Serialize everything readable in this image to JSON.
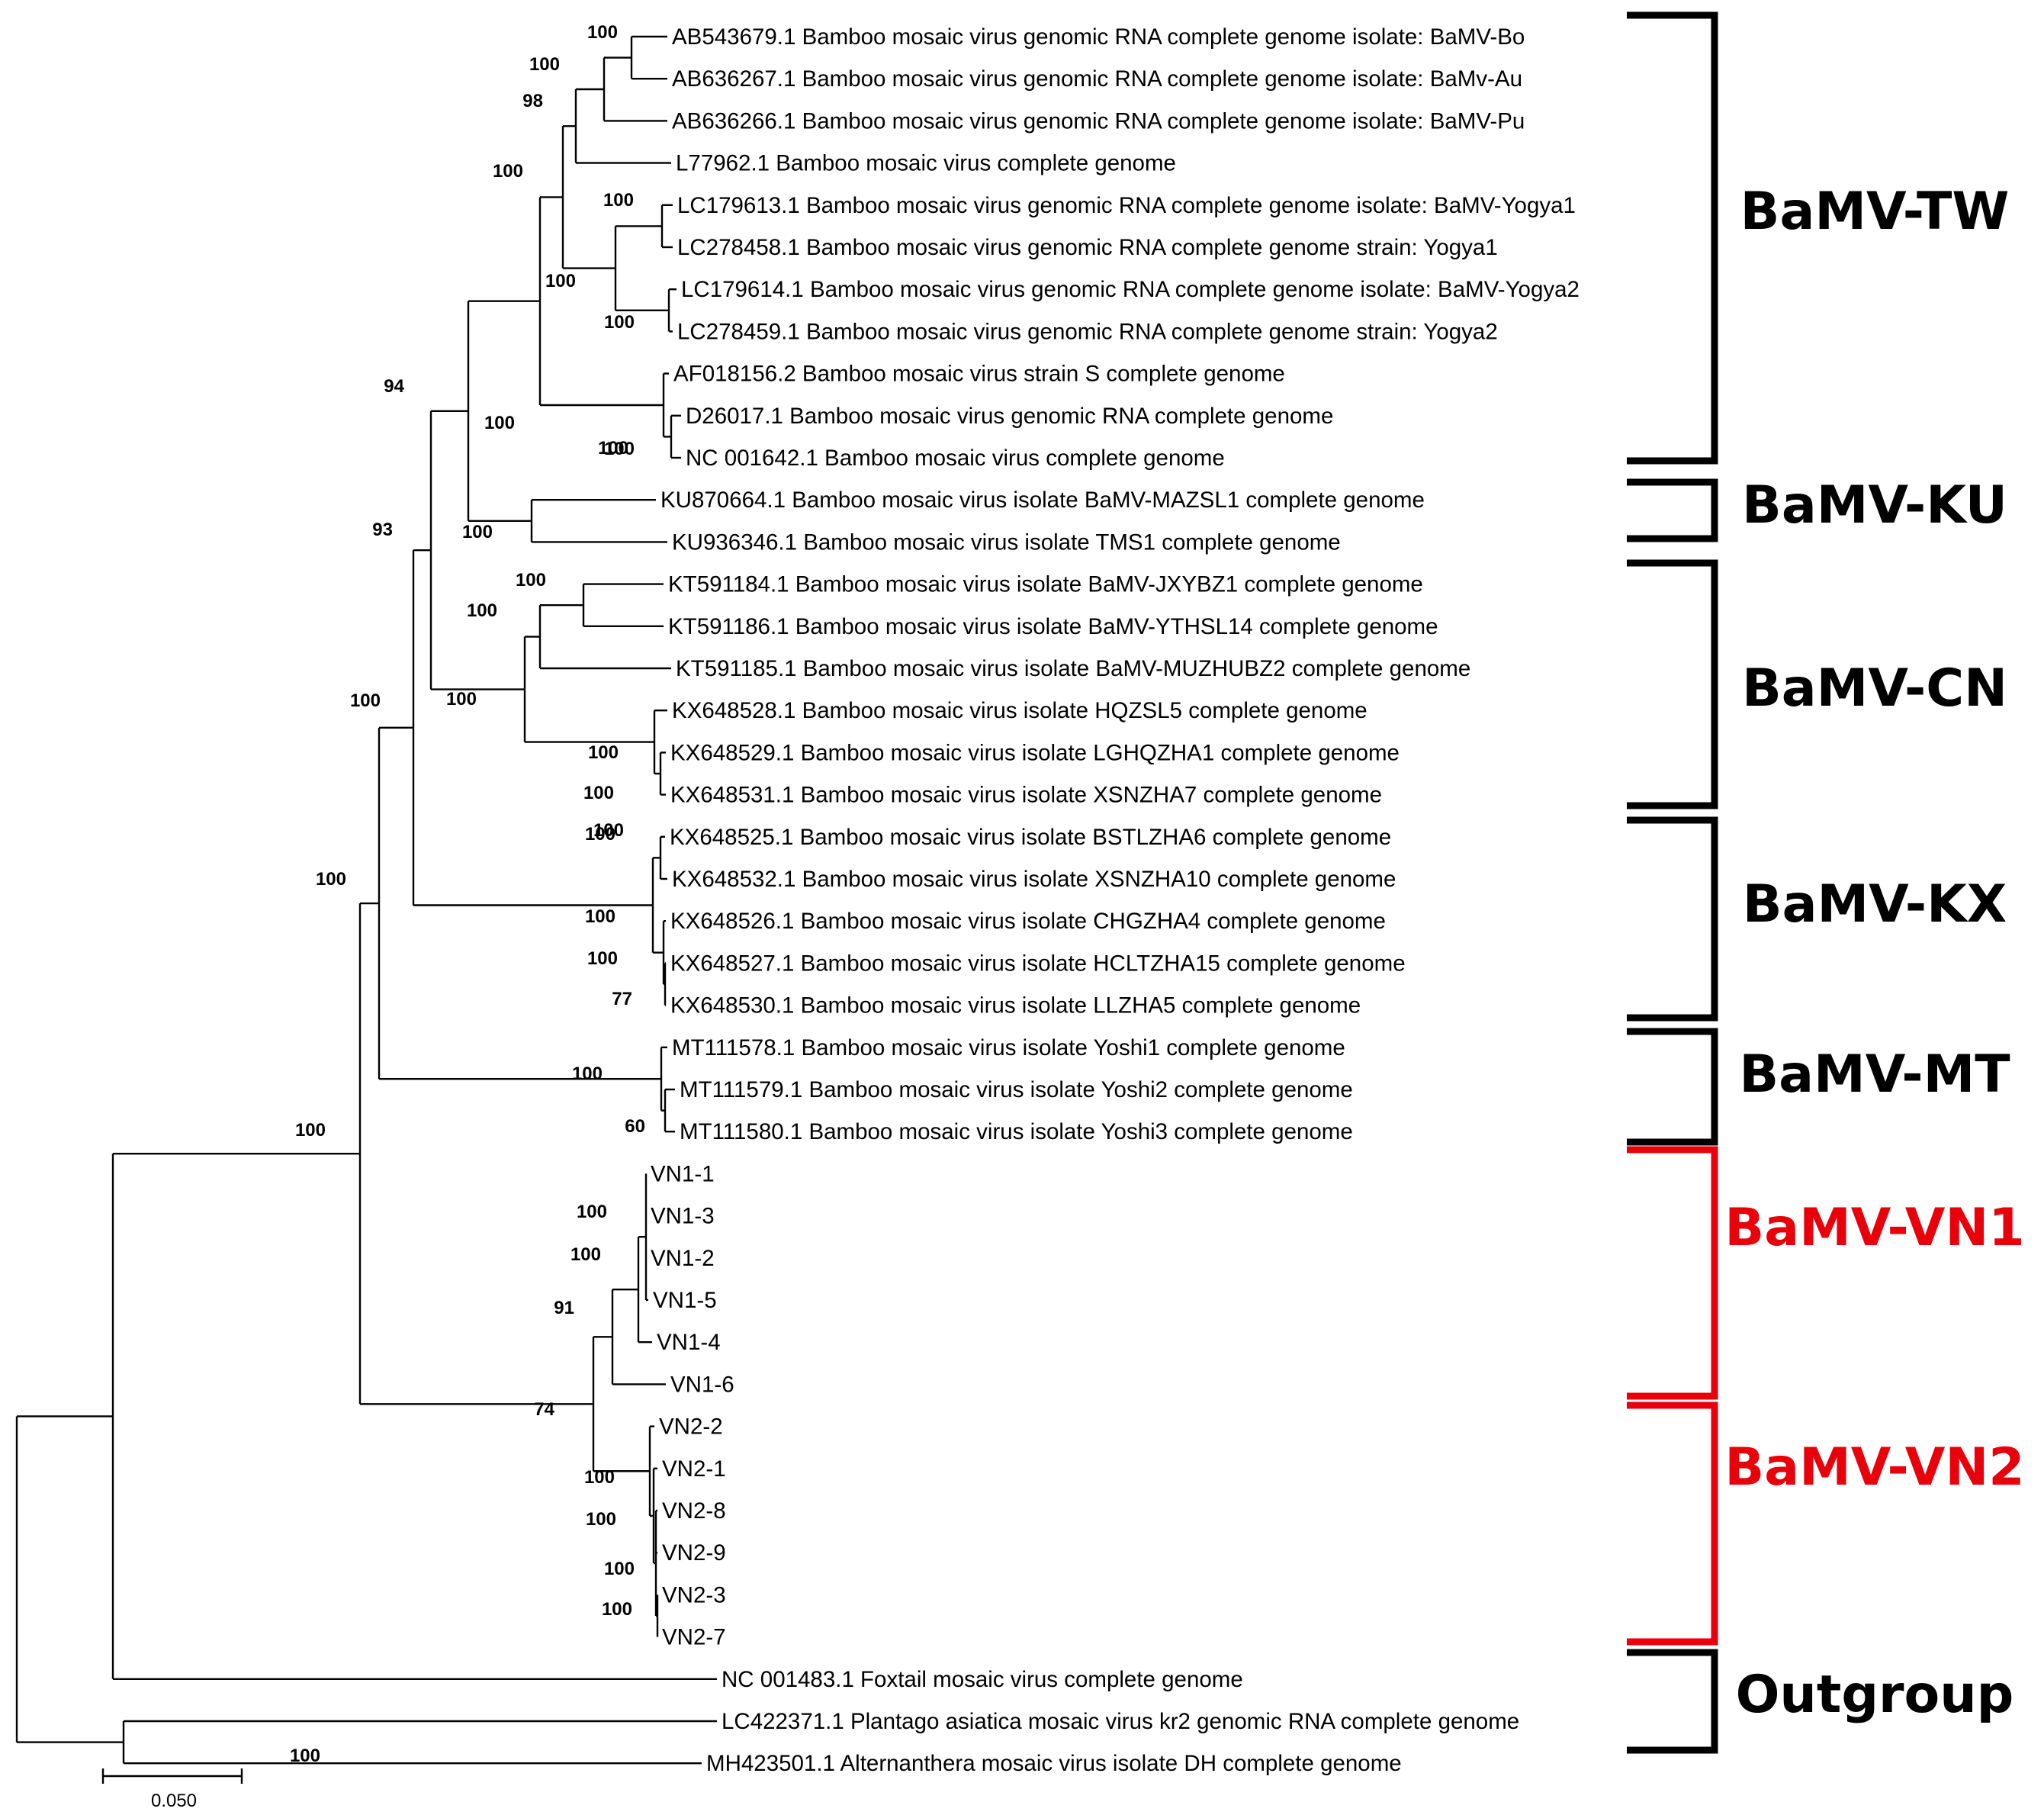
{
  "colors": {
    "line": "#000000",
    "highlight": "#e8000b",
    "text": "#000000"
  },
  "tree": {
    "leaves": [
      "AB543679.1 Bamboo mosaic virus genomic RNA complete genome isolate: BaMV-Bo",
      "AB636267.1 Bamboo mosaic virus genomic RNA complete genome isolate: BaMv-Au",
      "AB636266.1 Bamboo mosaic virus genomic RNA complete genome isolate: BaMV-Pu",
      "L77962.1 Bamboo mosaic virus complete genome",
      "LC179613.1 Bamboo mosaic virus genomic RNA complete genome isolate: BaMV-Yogya1",
      "LC278458.1 Bamboo mosaic virus genomic RNA complete genome strain: Yogya1",
      "LC179614.1 Bamboo mosaic virus genomic RNA complete genome isolate: BaMV-Yogya2",
      "LC278459.1 Bamboo mosaic virus genomic RNA complete genome strain: Yogya2",
      "AF018156.2 Bamboo mosaic virus strain S complete genome",
      "D26017.1 Bamboo mosaic virus genomic RNA complete genome",
      "NC 001642.1 Bamboo mosaic virus complete genome",
      "KU870664.1 Bamboo mosaic virus isolate BaMV-MAZSL1 complete genome",
      "KU936346.1 Bamboo mosaic virus isolate TMS1 complete genome",
      "KT591184.1 Bamboo mosaic virus isolate BaMV-JXYBZ1 complete genome",
      "KT591186.1 Bamboo mosaic virus isolate BaMV-YTHSL14 complete genome",
      "KT591185.1 Bamboo mosaic virus isolate BaMV-MUZHUBZ2 complete genome",
      "KX648528.1 Bamboo mosaic virus isolate HQZSL5 complete genome",
      "KX648529.1 Bamboo mosaic virus isolate LGHQZHA1 complete genome",
      "KX648531.1 Bamboo mosaic virus isolate XSNZHA7 complete genome",
      "KX648525.1 Bamboo mosaic virus isolate BSTLZHA6 complete genome",
      "KX648532.1 Bamboo mosaic virus isolate XSNZHA10 complete genome",
      "KX648526.1 Bamboo mosaic virus isolate CHGZHA4 complete genome",
      "KX648527.1 Bamboo mosaic virus isolate HCLTZHA15 complete genome",
      "KX648530.1 Bamboo mosaic virus isolate LLZHA5 complete genome",
      "MT111578.1 Bamboo mosaic virus isolate Yoshi1 complete genome",
      "MT111579.1 Bamboo mosaic virus isolate Yoshi2 complete genome",
      "MT111580.1 Bamboo mosaic virus isolate Yoshi3 complete genome",
      "VN1-1",
      "VN1-3",
      "VN1-2",
      "VN1-5",
      "VN1-4",
      "VN1-6",
      "VN2-2",
      "VN2-1",
      "VN2-8",
      "VN2-9",
      "VN2-3",
      "VN2-7",
      "NC 001483.1 Foxtail mosaic virus complete genome",
      "LC422371.1 Plantago asiatica mosaic virus kr2 genomic RNA complete genome",
      "MH423501.1 Alternanthera mosaic virus isolate DH complete genome"
    ],
    "bootstrap": [
      "100",
      "100",
      "98",
      "100",
      "100",
      "100",
      "100",
      "100",
      "100",
      "94",
      "100",
      "100",
      "93",
      "100",
      "100",
      "100",
      "100",
      "100",
      "100",
      "100",
      "100",
      "100",
      "77",
      "100",
      "60",
      "100",
      "100",
      "100",
      "100",
      "100",
      "91",
      "74",
      "100",
      "100",
      "100",
      "100",
      "100",
      "100",
      "100"
    ],
    "clades": [
      "BaMV-TW",
      "BaMV-KU",
      "BaMV-CN",
      "BaMV-KX",
      "BaMV-MT",
      "BaMV-VN1",
      "BaMV-VN2",
      "Outgroup"
    ],
    "scale_bar_label": "0.050"
  }
}
